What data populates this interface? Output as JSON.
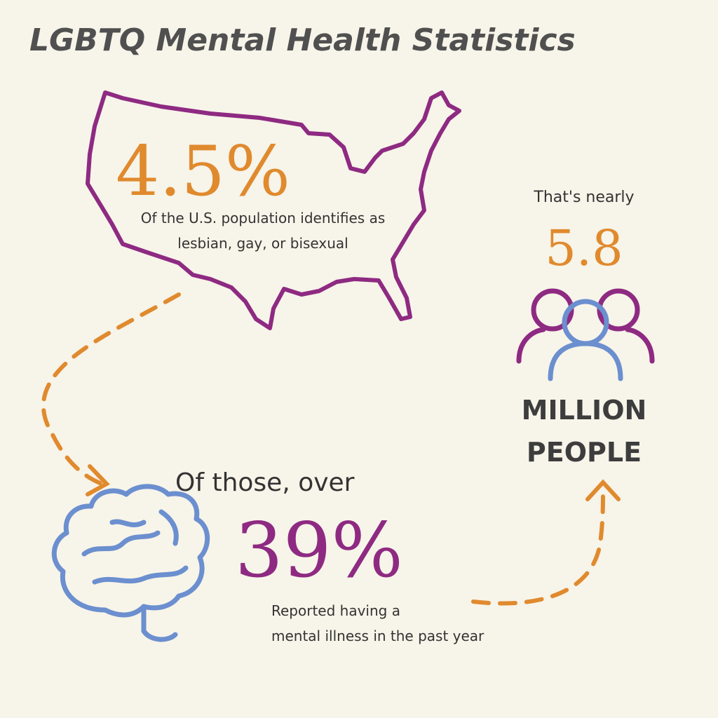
{
  "title": "LGBTQ Mental Health Statistics",
  "population": {
    "value": "4.5%",
    "description": [
      "Of the U.S. population identifies as",
      "lesbian, gay, or bisexual"
    ]
  },
  "mental_illness": {
    "lead": "Of those, over",
    "value": "39%",
    "description": [
      "Reported having a",
      "mental illness in the past year"
    ]
  },
  "people": {
    "lead": "That's nearly",
    "value": "5.8",
    "unit": [
      "MILLION",
      "PEOPLE"
    ]
  }
}
